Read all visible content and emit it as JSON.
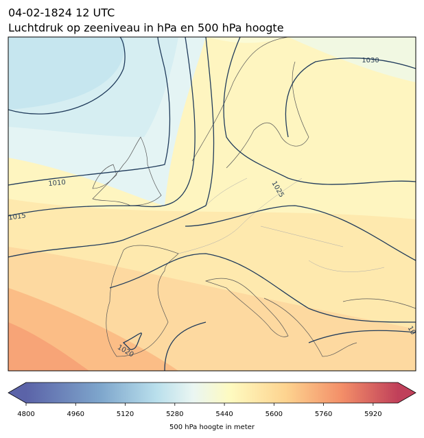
{
  "header": {
    "title": "04-02-1824 12 UTC",
    "subtitle": "Luchtdruk op zeeniveau in hPa en 500 hPa hoogte"
  },
  "map": {
    "contour_labels": [
      1030,
      1025,
      1010,
      1015,
      1020,
      "10"
    ]
  },
  "colorbar": {
    "label": "500 hPa hoogte in meter",
    "lim": [
      4800,
      6000
    ],
    "ticks": [
      4800,
      4960,
      5120,
      5280,
      5440,
      5600,
      5760,
      5920
    ]
  }
}
